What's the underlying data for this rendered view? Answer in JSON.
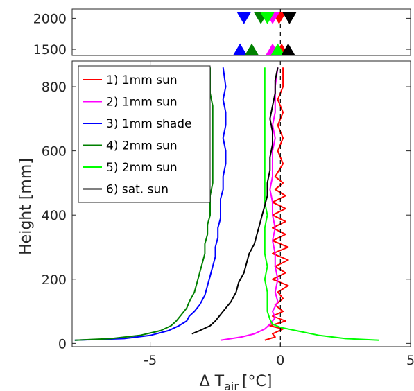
{
  "chart_data": [
    {
      "type": "scatter",
      "panel": "top",
      "title": "",
      "xlabel": "",
      "ylabel": "",
      "xlim": [
        -8,
        5
      ],
      "ylim": [
        1400,
        2150
      ],
      "yticks": [
        1500,
        2000
      ],
      "ytick_labels": [
        "1500",
        "2000"
      ],
      "grid": false,
      "reference_line_x": 0,
      "series": [
        {
          "color": "#0000ff",
          "markers": [
            {
              "x": -1.4,
              "y": 2000,
              "shape": "down"
            },
            {
              "x": -1.55,
              "y": 1500,
              "shape": "up"
            }
          ]
        },
        {
          "color": "#ff0000",
          "markers": [
            {
              "x": -0.05,
              "y": 2000,
              "shape": "down"
            },
            {
              "x": 0.05,
              "y": 1500,
              "shape": "up"
            }
          ]
        },
        {
          "color": "#ff00ff",
          "markers": [
            {
              "x": -0.3,
              "y": 2000,
              "shape": "down"
            },
            {
              "x": -0.3,
              "y": 1500,
              "shape": "up"
            }
          ]
        },
        {
          "color": "#008000",
          "markers": [
            {
              "x": -0.75,
              "y": 2000,
              "shape": "down"
            },
            {
              "x": -1.1,
              "y": 1500,
              "shape": "up"
            }
          ]
        },
        {
          "color": "#00ff00",
          "markers": [
            {
              "x": -0.5,
              "y": 2000,
              "shape": "down"
            },
            {
              "x": -0.1,
              "y": 1500,
              "shape": "up"
            }
          ]
        },
        {
          "color": "#000000",
          "markers": [
            {
              "x": 0.35,
              "y": 2000,
              "shape": "down"
            },
            {
              "x": 0.3,
              "y": 1500,
              "shape": "up"
            }
          ]
        }
      ]
    },
    {
      "type": "line",
      "panel": "main",
      "title": "",
      "xlabel": "Δ T",
      "xlabel_subscript": "air",
      "xlabel_unit": "[°C]",
      "ylabel": "Height [mm]",
      "xlim": [
        -8,
        5
      ],
      "ylim": [
        -10,
        880
      ],
      "xticks": [
        -5,
        0,
        5
      ],
      "xtick_labels": [
        "-5",
        "0",
        "5"
      ],
      "yticks": [
        0,
        200,
        400,
        600,
        800
      ],
      "ytick_labels": [
        "0",
        "200",
        "400",
        "600",
        "800"
      ],
      "grid": false,
      "reference_line_x": 0,
      "legend_position": "top-left",
      "series": [
        {
          "name": "1) 1mm sun",
          "color": "#ff0000",
          "points": [
            [
              -0.6,
              10
            ],
            [
              -0.2,
              20
            ],
            [
              -0.3,
              30
            ],
            [
              0.1,
              45
            ],
            [
              -0.4,
              55
            ],
            [
              0.2,
              70
            ],
            [
              -0.3,
              85
            ],
            [
              0.1,
              100
            ],
            [
              -0.2,
              120
            ],
            [
              0.1,
              140
            ],
            [
              -0.1,
              160
            ],
            [
              0.3,
              180
            ],
            [
              -0.3,
              200
            ],
            [
              0.2,
              220
            ],
            [
              -0.2,
              240
            ],
            [
              0.3,
              260
            ],
            [
              -0.3,
              280
            ],
            [
              0.3,
              300
            ],
            [
              -0.3,
              320
            ],
            [
              0.2,
              340
            ],
            [
              -0.3,
              360
            ],
            [
              0.2,
              380
            ],
            [
              -0.3,
              400
            ],
            [
              0.2,
              420
            ],
            [
              -0.3,
              440
            ],
            [
              0.2,
              460
            ],
            [
              -0.2,
              480
            ],
            [
              0.1,
              500
            ],
            [
              -0.2,
              520
            ],
            [
              0.1,
              560
            ],
            [
              -0.1,
              600
            ],
            [
              0.1,
              640
            ],
            [
              -0.1,
              680
            ],
            [
              0.1,
              720
            ],
            [
              -0.1,
              760
            ],
            [
              0.1,
              800
            ],
            [
              0.1,
              860
            ]
          ]
        },
        {
          "name": "2) 1mm sun",
          "color": "#ff00ff",
          "points": [
            [
              -2.3,
              10
            ],
            [
              -1.5,
              20
            ],
            [
              -1.0,
              30
            ],
            [
              -0.6,
              45
            ],
            [
              -0.4,
              60
            ],
            [
              -0.2,
              80
            ],
            [
              -0.3,
              100
            ],
            [
              -0.1,
              130
            ],
            [
              -0.2,
              160
            ],
            [
              -0.1,
              200
            ],
            [
              -0.2,
              240
            ],
            [
              -0.2,
              280
            ],
            [
              -0.3,
              320
            ],
            [
              -0.2,
              360
            ],
            [
              -0.3,
              400
            ],
            [
              -0.3,
              440
            ],
            [
              -0.4,
              480
            ],
            [
              -0.3,
              520
            ],
            [
              -0.3,
              560
            ],
            [
              -0.3,
              600
            ],
            [
              -0.2,
              640
            ],
            [
              -0.3,
              680
            ],
            [
              -0.2,
              720
            ],
            [
              -0.2,
              760
            ],
            [
              -0.2,
              800
            ],
            [
              -0.1,
              860
            ]
          ]
        },
        {
          "name": "3) 1mm shade",
          "color": "#0000ff",
          "points": [
            [
              -7.9,
              10
            ],
            [
              -6.0,
              15
            ],
            [
              -5.0,
              25
            ],
            [
              -4.3,
              40
            ],
            [
              -3.9,
              55
            ],
            [
              -3.6,
              70
            ],
            [
              -3.5,
              85
            ],
            [
              -3.3,
              100
            ],
            [
              -3.1,
              120
            ],
            [
              -2.9,
              150
            ],
            [
              -2.8,
              180
            ],
            [
              -2.7,
              210
            ],
            [
              -2.6,
              240
            ],
            [
              -2.5,
              270
            ],
            [
              -2.5,
              300
            ],
            [
              -2.4,
              330
            ],
            [
              -2.4,
              360
            ],
            [
              -2.3,
              390
            ],
            [
              -2.3,
              420
            ],
            [
              -2.3,
              450
            ],
            [
              -2.2,
              480
            ],
            [
              -2.2,
              520
            ],
            [
              -2.1,
              560
            ],
            [
              -2.1,
              600
            ],
            [
              -2.2,
              640
            ],
            [
              -2.1,
              680
            ],
            [
              -2.1,
              720
            ],
            [
              -2.2,
              760
            ],
            [
              -2.1,
              800
            ],
            [
              -2.2,
              860
            ]
          ]
        },
        {
          "name": "4) 2mm sun",
          "color": "#008000",
          "points": [
            [
              -7.9,
              10
            ],
            [
              -6.5,
              15
            ],
            [
              -5.4,
              25
            ],
            [
              -4.6,
              40
            ],
            [
              -4.2,
              55
            ],
            [
              -4.0,
              70
            ],
            [
              -3.8,
              90
            ],
            [
              -3.6,
              110
            ],
            [
              -3.5,
              130
            ],
            [
              -3.3,
              160
            ],
            [
              -3.2,
              190
            ],
            [
              -3.1,
              220
            ],
            [
              -3.0,
              250
            ],
            [
              -2.9,
              280
            ],
            [
              -2.9,
              310
            ],
            [
              -2.8,
              340
            ],
            [
              -2.8,
              370
            ],
            [
              -2.7,
              400
            ],
            [
              -2.7,
              430
            ],
            [
              -2.7,
              460
            ],
            [
              -2.6,
              500
            ],
            [
              -2.6,
              540
            ],
            [
              -2.6,
              580
            ],
            [
              -2.6,
              620
            ],
            [
              -2.6,
              660
            ],
            [
              -2.6,
              700
            ],
            [
              -2.6,
              740
            ],
            [
              -2.7,
              780
            ],
            [
              -2.7,
              820
            ],
            [
              -2.7,
              860
            ]
          ]
        },
        {
          "name": "5) 2mm sun",
          "color": "#00ff00",
          "points": [
            [
              3.8,
              10
            ],
            [
              2.5,
              15
            ],
            [
              1.5,
              25
            ],
            [
              0.6,
              40
            ],
            [
              0.0,
              50
            ],
            [
              -0.3,
              60
            ],
            [
              -0.4,
              75
            ],
            [
              -0.5,
              100
            ],
            [
              -0.5,
              130
            ],
            [
              -0.5,
              160
            ],
            [
              -0.6,
              200
            ],
            [
              -0.5,
              240
            ],
            [
              -0.6,
              280
            ],
            [
              -0.6,
              320
            ],
            [
              -0.6,
              360
            ],
            [
              -0.5,
              400
            ],
            [
              -0.6,
              440
            ],
            [
              -0.6,
              480
            ],
            [
              -0.6,
              520
            ],
            [
              -0.6,
              560
            ],
            [
              -0.6,
              600
            ],
            [
              -0.6,
              640
            ],
            [
              -0.6,
              680
            ],
            [
              -0.6,
              720
            ],
            [
              -0.6,
              760
            ],
            [
              -0.6,
              800
            ],
            [
              -0.6,
              860
            ]
          ]
        },
        {
          "name": "6) sat. sun",
          "color": "#000000",
          "points": [
            [
              -3.4,
              30
            ],
            [
              -3.1,
              40
            ],
            [
              -2.7,
              55
            ],
            [
              -2.5,
              70
            ],
            [
              -2.3,
              90
            ],
            [
              -2.1,
              110
            ],
            [
              -1.9,
              130
            ],
            [
              -1.7,
              160
            ],
            [
              -1.6,
              190
            ],
            [
              -1.4,
              220
            ],
            [
              -1.3,
              250
            ],
            [
              -1.2,
              280
            ],
            [
              -1.0,
              310
            ],
            [
              -0.9,
              340
            ],
            [
              -0.8,
              370
            ],
            [
              -0.7,
              400
            ],
            [
              -0.6,
              430
            ],
            [
              -0.5,
              460
            ],
            [
              -0.5,
              500
            ],
            [
              -0.4,
              540
            ],
            [
              -0.4,
              580
            ],
            [
              -0.3,
              620
            ],
            [
              -0.3,
              660
            ],
            [
              -0.4,
              700
            ],
            [
              -0.3,
              740
            ],
            [
              -0.2,
              780
            ],
            [
              -0.2,
              820
            ],
            [
              -0.1,
              860
            ]
          ]
        }
      ]
    }
  ]
}
